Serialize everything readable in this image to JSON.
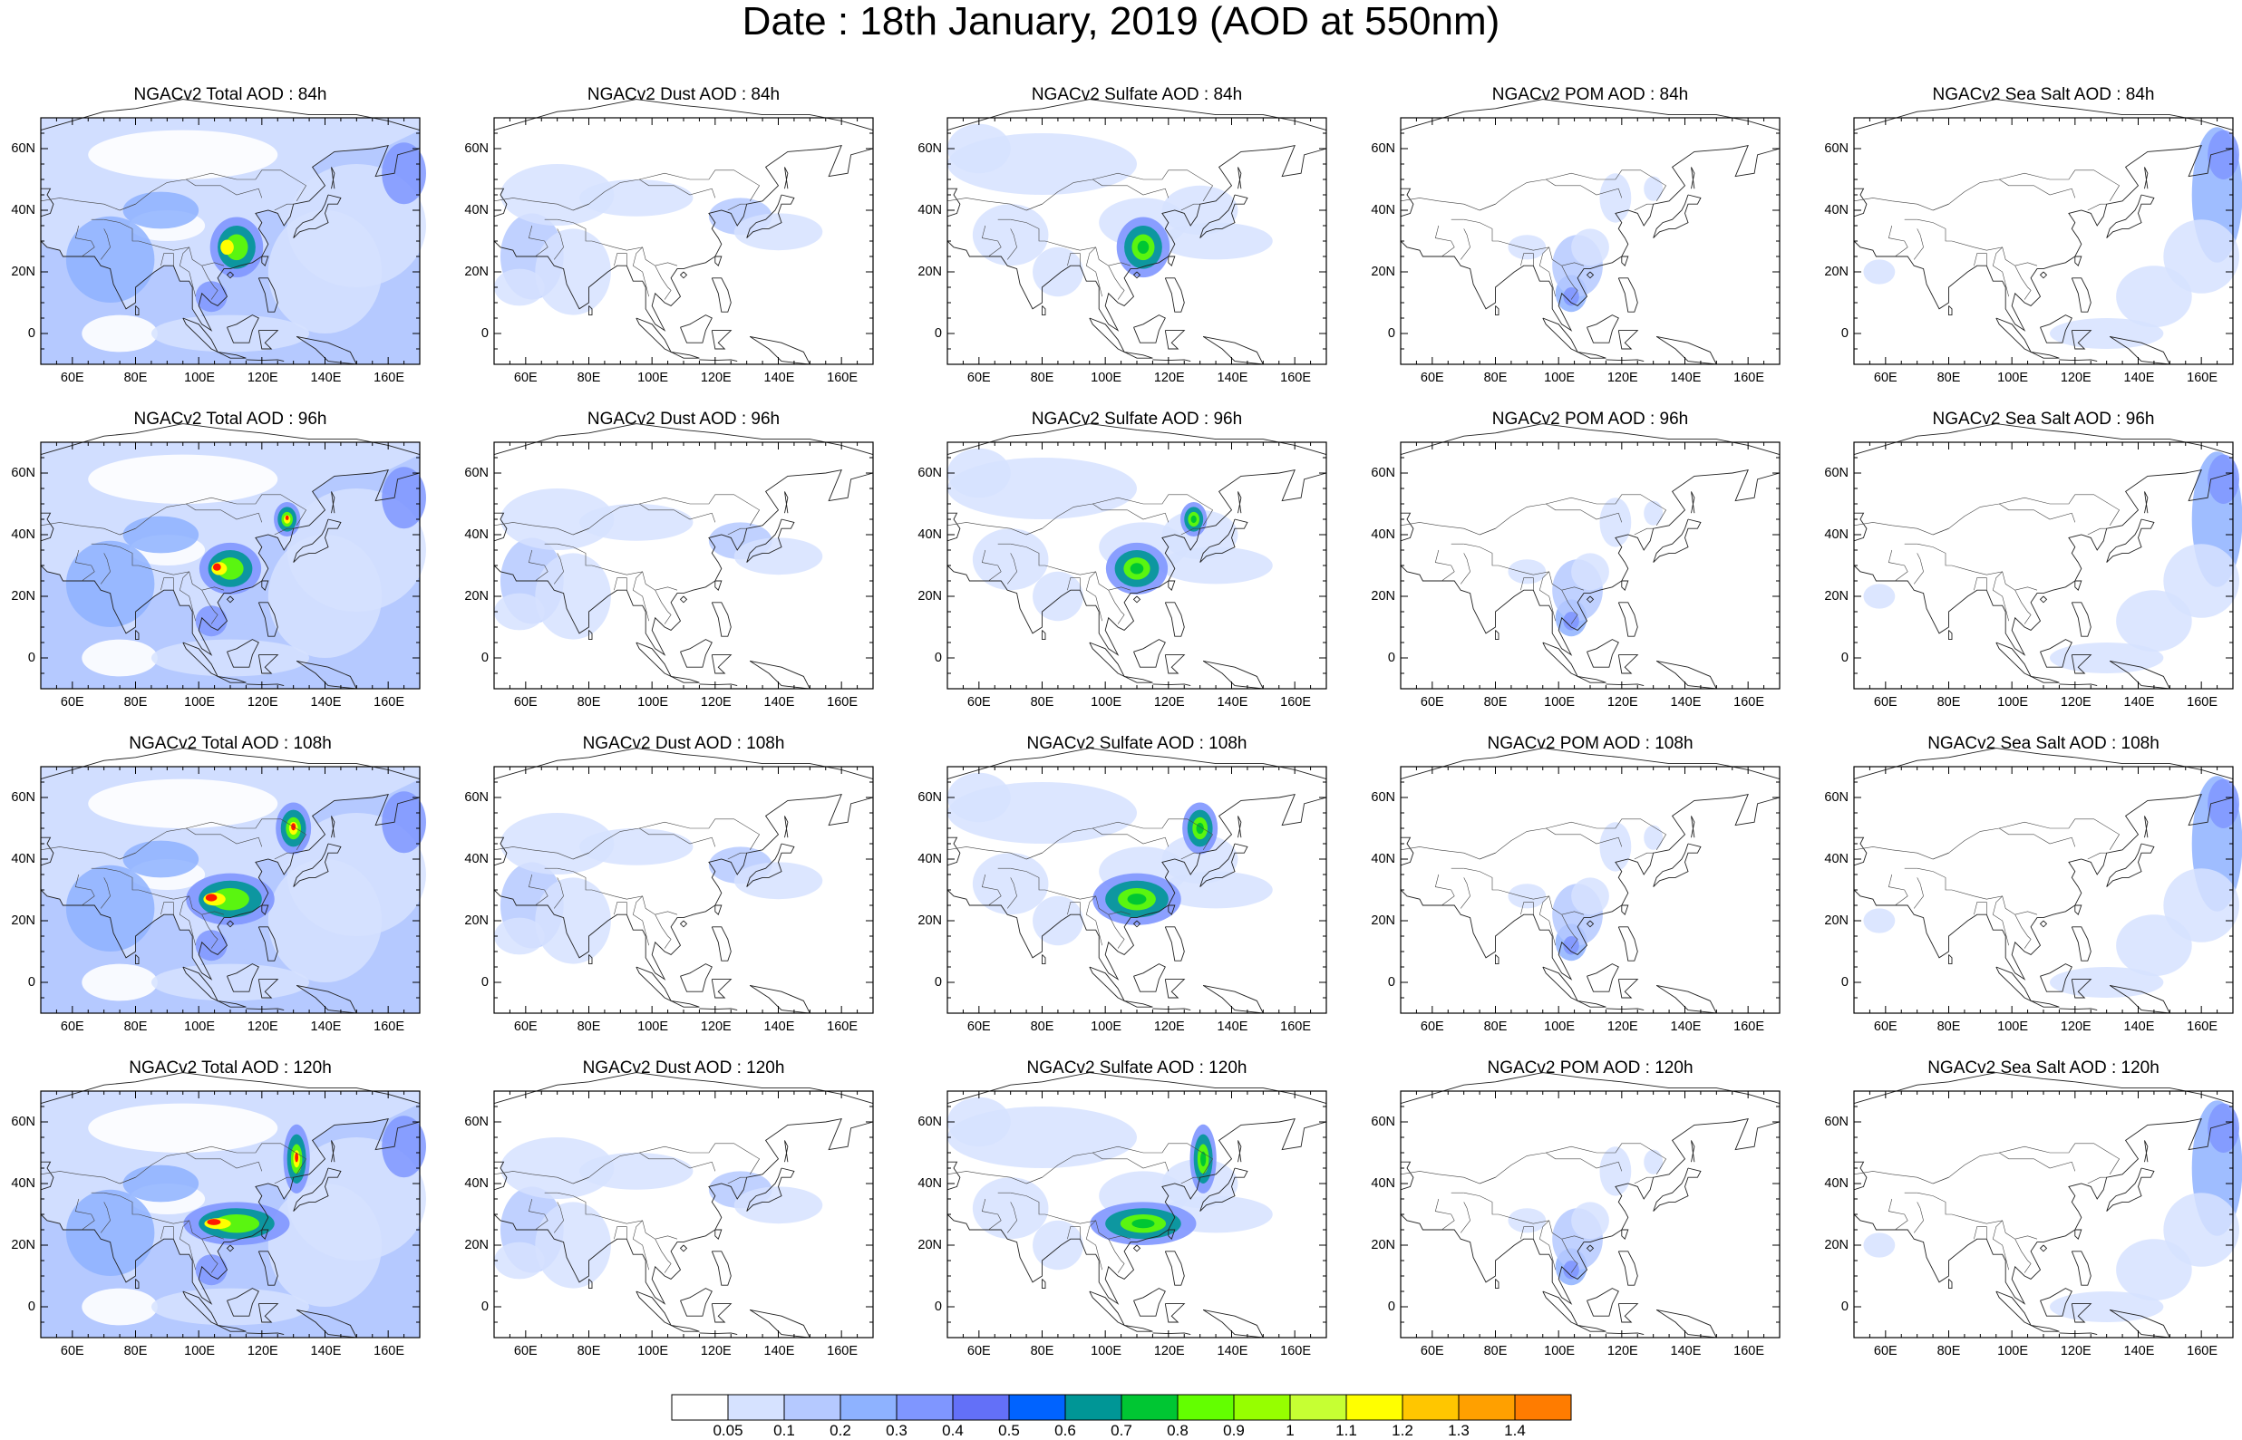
{
  "title": "Date : 18th January, 2019 (AOD at 550nm)",
  "axes": {
    "x_ticks": [
      "60E",
      "80E",
      "100E",
      "120E",
      "140E",
      "160E"
    ],
    "y_ticks": [
      "60N",
      "40N",
      "20N",
      "0"
    ],
    "lon_range": [
      50,
      170
    ],
    "lat_range": [
      -10,
      70
    ]
  },
  "panels": [
    [
      "NGACv2 Total AOD : 84h",
      "NGACv2 Dust AOD : 84h",
      "NGACv2 Sulfate AOD : 84h",
      "NGACv2 POM AOD : 84h",
      "NGACv2 Sea Salt AOD : 84h"
    ],
    [
      "NGACv2 Total AOD : 96h",
      "NGACv2 Dust AOD : 96h",
      "NGACv2 Sulfate AOD : 96h",
      "NGACv2 POM AOD : 96h",
      "NGACv2 Sea Salt AOD : 96h"
    ],
    [
      "NGACv2 Total AOD : 108h",
      "NGACv2 Dust AOD : 108h",
      "NGACv2 Sulfate AOD : 108h",
      "NGACv2 POM AOD : 108h",
      "NGACv2 Sea Salt AOD : 108h"
    ],
    [
      "NGACv2 Total AOD : 120h",
      "NGACv2 Dust AOD : 120h",
      "NGACv2 Sulfate AOD : 120h",
      "NGACv2 POM AOD : 120h",
      "NGACv2 Sea Salt  AOD : 120h"
    ]
  ],
  "colorbar": {
    "labels": [
      "0.05",
      "0.1",
      "0.2",
      "0.3",
      "0.4",
      "0.5",
      "0.6",
      "0.7",
      "0.8",
      "0.9",
      "1",
      "1.1",
      "1.2",
      "1.3",
      "1.4"
    ],
    "colors": [
      "#ffffff",
      "#d6e2ff",
      "#b5c9ff",
      "#8eb2ff",
      "#7f96ff",
      "#6370f8",
      "#0063ff",
      "#009696",
      "#00c633",
      "#63ff00",
      "#96ff00",
      "#c6ff33",
      "#ffff00",
      "#ffc600",
      "#ffa000",
      "#ff7c00",
      "#ff1900"
    ]
  }
}
